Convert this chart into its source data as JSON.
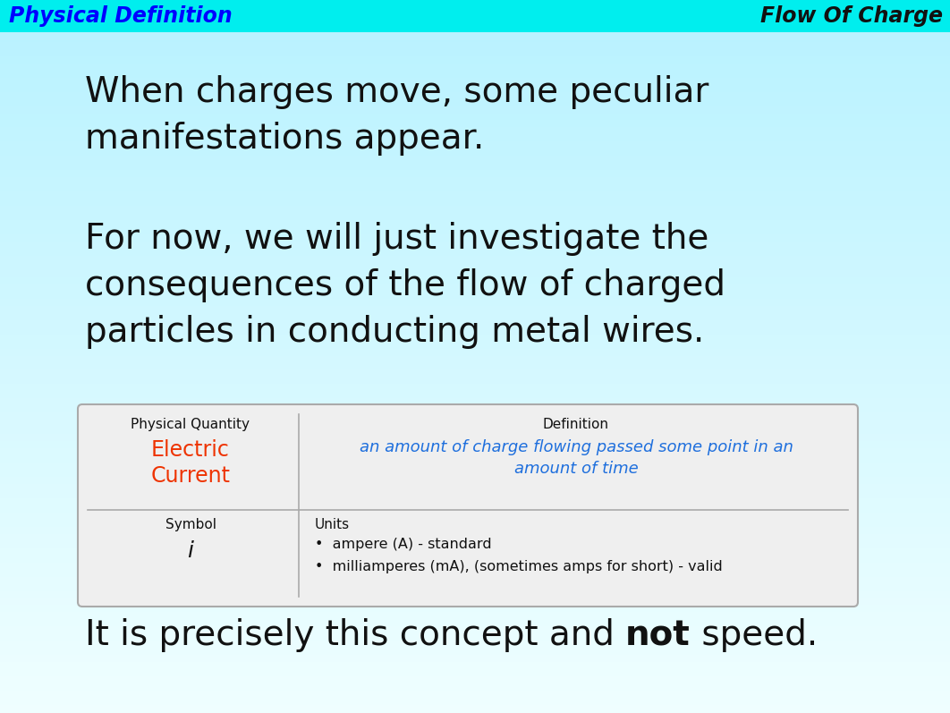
{
  "header_bg_color": "#00EEEE",
  "header_left_text": "Physical Definition",
  "header_left_color": "#0000FF",
  "header_right_text": "Flow Of Charge",
  "header_right_color": "#111111",
  "para1_line1": "When charges move, some peculiar",
  "para1_line2": "manifestations appear.",
  "para2_line1": "For now, we will just investigate the",
  "para2_line2": "consequences of the flow of charged",
  "para2_line3": "particles in conducting metal wires.",
  "para3_normal": "It is precisely this concept and ",
  "para3_bold": "not",
  "para3_end": " speed.",
  "table_header_col1": "Physical Quantity",
  "table_header_col2": "Definition",
  "table_val1_line1": "Electric",
  "table_val1_line2": "Current",
  "table_val1_color": "#EE3300",
  "table_def_line1": "an amount of charge flowing passed some point in an",
  "table_def_line2": "amount of time",
  "table_def_color": "#1E6FDD",
  "table_sym_label": "Symbol",
  "table_sym_val": "i",
  "table_units_label": "Units",
  "table_unit1": "ampere (A) - standard",
  "table_unit2": "milliamperes (mA), (sometimes amps for short) - valid",
  "table_bg": "#EFEFEF",
  "table_border_color": "#AAAAAA",
  "text_color": "#111111",
  "fig_width": 10.62,
  "fig_height": 7.97,
  "dpi": 100
}
